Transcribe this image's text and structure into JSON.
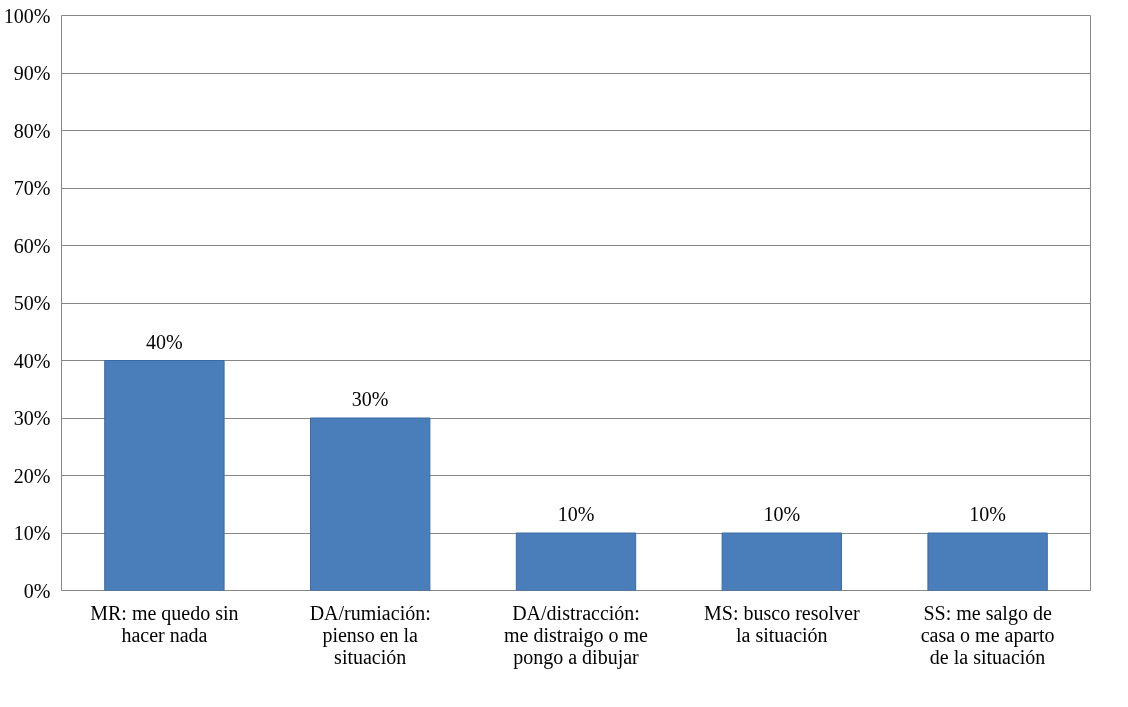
{
  "chart_data": {
    "type": "bar",
    "categories": [
      "MR: me quedo sin\nhacer nada",
      "DA/rumiación:\npienso en la\nsituación",
      "DA/distracción:\nme distraigo o me\npongo a dibujar",
      "MS: busco resolver\nla situación",
      "SS: me salgo de\ncasa o me aparto\nde la situación"
    ],
    "values": [
      40,
      30,
      10,
      10,
      10
    ],
    "value_labels": [
      "40%",
      "30%",
      "10%",
      "10%",
      "10%"
    ],
    "color": "#4a7ebb",
    "ylim": [
      0,
      100
    ],
    "yticks": [
      {
        "value": 0,
        "label": "0%"
      },
      {
        "value": 10,
        "label": "10%"
      },
      {
        "value": 20,
        "label": "20%"
      },
      {
        "value": 30,
        "label": "30%"
      },
      {
        "value": 40,
        "label": "40%"
      },
      {
        "value": 50,
        "label": "50%"
      },
      {
        "value": 60,
        "label": "60%"
      },
      {
        "value": 70,
        "label": "70%"
      },
      {
        "value": 80,
        "label": "80%"
      },
      {
        "value": 90,
        "label": "90%"
      },
      {
        "value": 100,
        "label": "100%"
      }
    ],
    "grid": "y"
  }
}
